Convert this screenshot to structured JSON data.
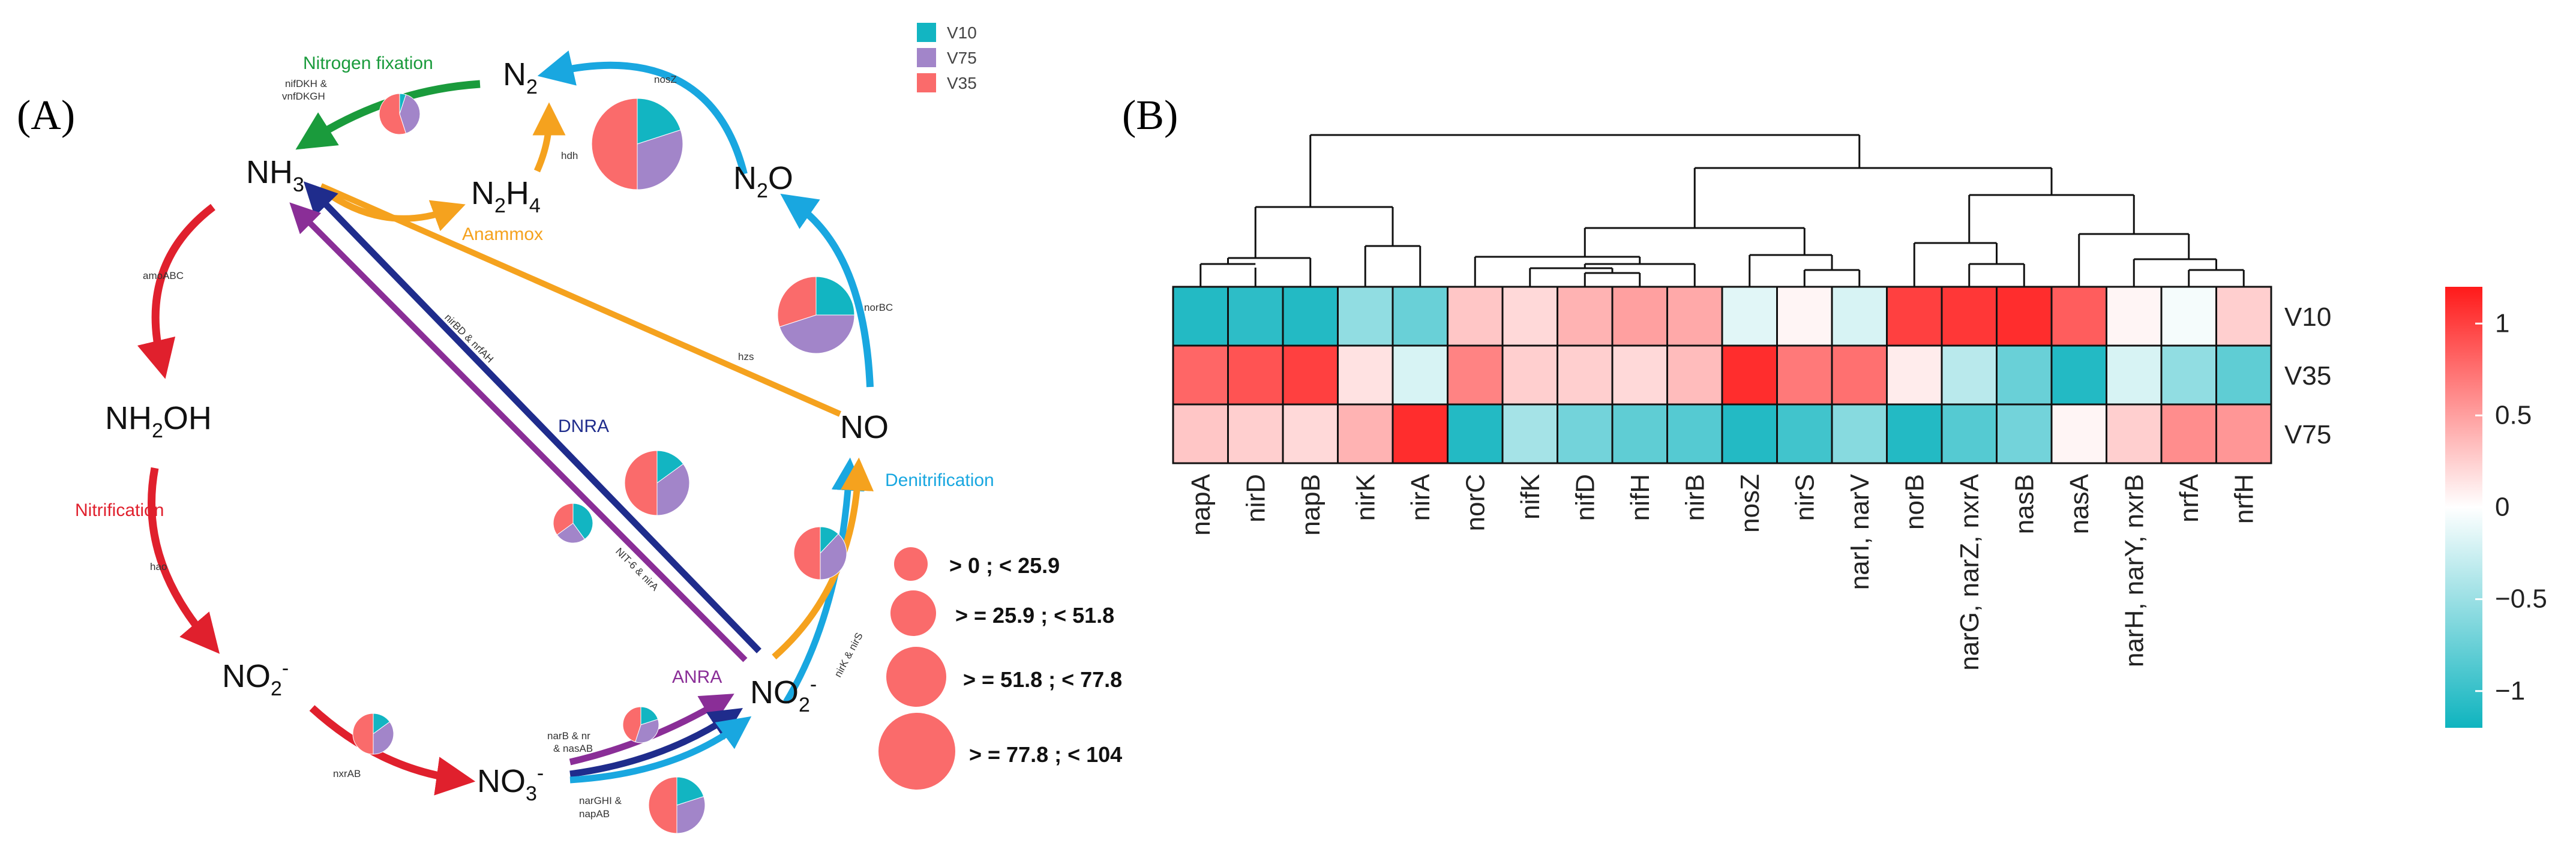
{
  "panelA": {
    "label": "(A)",
    "legend": [
      {
        "name": "V10",
        "color": "#12b5c2"
      },
      {
        "name": "V75",
        "color": "#a285c9"
      },
      {
        "name": "V35",
        "color": "#fa6b6b"
      }
    ],
    "nodes": {
      "n2": {
        "main": "N",
        "sub": "2",
        "sup": ""
      },
      "nh3": {
        "main": "NH",
        "sub": "3",
        "sup": ""
      },
      "n2h4": {
        "main": "N",
        "sub": "2",
        "main2": "H",
        "sub2": "4"
      },
      "n2o": {
        "main": "N",
        "sub": "2",
        "main2": "O"
      },
      "nh2oh": {
        "main": "NH",
        "sub": "2",
        "main2": "OH"
      },
      "no": {
        "main": "NO"
      },
      "no2_left": {
        "main": "NO",
        "sub": "2",
        "sup": "-"
      },
      "no2_right": {
        "main": "NO",
        "sub": "2",
        "sup": "-"
      },
      "no3": {
        "main": "NO",
        "sub": "3",
        "sup": "-"
      }
    },
    "processes": {
      "nitrogen_fixation": "Nitrogen fixation",
      "anammox": "Anammox",
      "dnra": "DNRA",
      "nitrification": "Nitrification",
      "anra": "ANRA",
      "denitrification": "Denitrification"
    },
    "process_colors": {
      "nitrogen_fixation": "#1a9b3c",
      "anammox": "#f5a21e",
      "dnra": "#1f2c8c",
      "nitrification": "#e0202d",
      "anra": "#8a2e97",
      "denitrification": "#19a7e0"
    },
    "gene_labels": {
      "nifdkh": "nifDKH &",
      "vnfdkgh": "vnfDKGH",
      "nosz": "nosZ",
      "hdh": "hdh",
      "amoabc": "amoABC",
      "norbc": "norBC",
      "hzs": "hzs",
      "nirbd": "nirBD & nrfAH",
      "hao": "hao",
      "nitrate": "NIT-6 & nirA",
      "nxrab": "nxrAB",
      "narb1": "narB & nr",
      "narb2": "& nasAB",
      "narghi1": "narGHI &",
      "narghi2": "napAB",
      "nirk": "nirK & nirS"
    },
    "pies": [
      {
        "id": "nitrogen-fixation",
        "V10": 5,
        "V75": 40,
        "V35": 55
      },
      {
        "id": "nosz",
        "V10": 20,
        "V75": 30,
        "V35": 50
      },
      {
        "id": "norbc",
        "V10": 25,
        "V75": 45,
        "V35": 30
      },
      {
        "id": "dnra",
        "V10": 15,
        "V75": 35,
        "V35": 50
      },
      {
        "id": "anra",
        "V10": 40,
        "V75": 25,
        "V35": 35
      },
      {
        "id": "denitrification",
        "V10": 12,
        "V75": 38,
        "V35": 50
      },
      {
        "id": "nitrification",
        "V10": 15,
        "V75": 35,
        "V35": 50
      },
      {
        "id": "narb",
        "V10": 20,
        "V75": 35,
        "V35": 45
      },
      {
        "id": "narghi",
        "V10": 20,
        "V75": 30,
        "V35": 50
      }
    ],
    "size_legend": [
      {
        "label": "> 0 ; < 25.9"
      },
      {
        "label": "> = 25.9 ; < 51.8"
      },
      {
        "label": "> = 51.8 ; < 77.8"
      },
      {
        "label": "> = 77.8 ; < 104"
      }
    ]
  },
  "panelB": {
    "label": "(B)",
    "rows": [
      "V10",
      "V35",
      "V75"
    ],
    "columns": [
      "napA",
      "nirD",
      "napB",
      "nirK",
      "nirA",
      "norC",
      "nifK",
      "nifD",
      "nifH",
      "nirB",
      "nosZ",
      "nirS",
      "narI, narV",
      "norB",
      "narG, narZ, nxrA",
      "nasB",
      "nasA",
      "narH, narY, nxrB",
      "nrfA",
      "nrfH"
    ],
    "colorbar": {
      "ticks": [
        "1",
        "0.5",
        "0",
        "−0.5",
        "−1"
      ],
      "high_color": "#ff1a1a",
      "mid_color": "#ffffff",
      "low_color": "#0fb4bf"
    }
  },
  "chart_data": {
    "type": "heatmap",
    "title": "",
    "x_categories": [
      "napA",
      "nirD",
      "napB",
      "nirK",
      "nirA",
      "norC",
      "nifK",
      "nifD",
      "nifH",
      "nirB",
      "nosZ",
      "nirS",
      "narI, narV",
      "norB",
      "narG, narZ, nxrA",
      "nasB",
      "nasA",
      "narH, narY, nxrB",
      "nrfA",
      "nrfH"
    ],
    "y_categories": [
      "V10",
      "V35",
      "V75"
    ],
    "values": [
      [
        -1.1,
        -1.05,
        -1.1,
        -0.55,
        -0.75,
        0.3,
        0.2,
        0.4,
        0.5,
        0.45,
        -0.15,
        0.05,
        -0.2,
        1.0,
        1.05,
        1.1,
        0.85,
        0.05,
        -0.05,
        0.25
      ],
      [
        0.8,
        0.9,
        1.0,
        0.15,
        -0.2,
        0.65,
        0.25,
        0.25,
        0.2,
        0.35,
        1.1,
        0.7,
        0.75,
        0.1,
        -0.35,
        -0.75,
        -1.1,
        -0.2,
        -0.55,
        -0.8
      ],
      [
        0.3,
        0.25,
        0.2,
        0.4,
        1.1,
        -1.1,
        -0.45,
        -0.7,
        -0.8,
        -0.85,
        -1.1,
        -0.95,
        -0.6,
        -1.1,
        -0.85,
        -0.7,
        0.05,
        0.25,
        0.6,
        0.55
      ]
    ],
    "colorscale_range": [
      -1.2,
      1.2
    ],
    "dendrogram": true
  }
}
